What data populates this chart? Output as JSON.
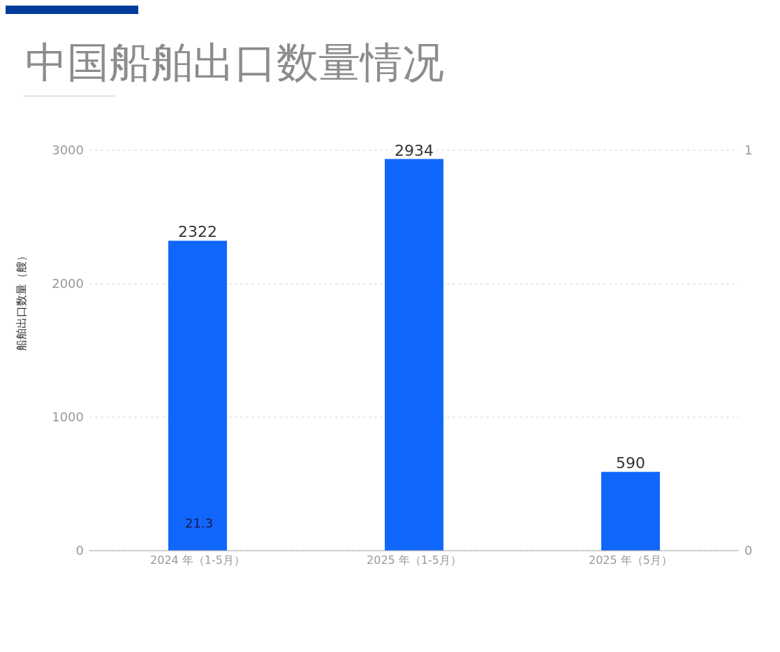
{
  "chart_data": {
    "type": "bar",
    "title": "中国船舶出口数量情况",
    "ylabel": "船舶出口数量（艘）",
    "categories": [
      "2024 年（1-5月）",
      "2025 年（1-5月）",
      "2025 年（5月）"
    ],
    "values": [
      2322,
      2934,
      590
    ],
    "color": "#1166fb",
    "ylim": [
      0,
      3000
    ],
    "yticks": [
      0,
      1000,
      2000,
      3000
    ],
    "y2lim": [
      0,
      1
    ],
    "y2ticks": [
      0,
      1
    ],
    "grid": "y",
    "data_labels": true,
    "annotations": [
      "21.3"
    ]
  }
}
